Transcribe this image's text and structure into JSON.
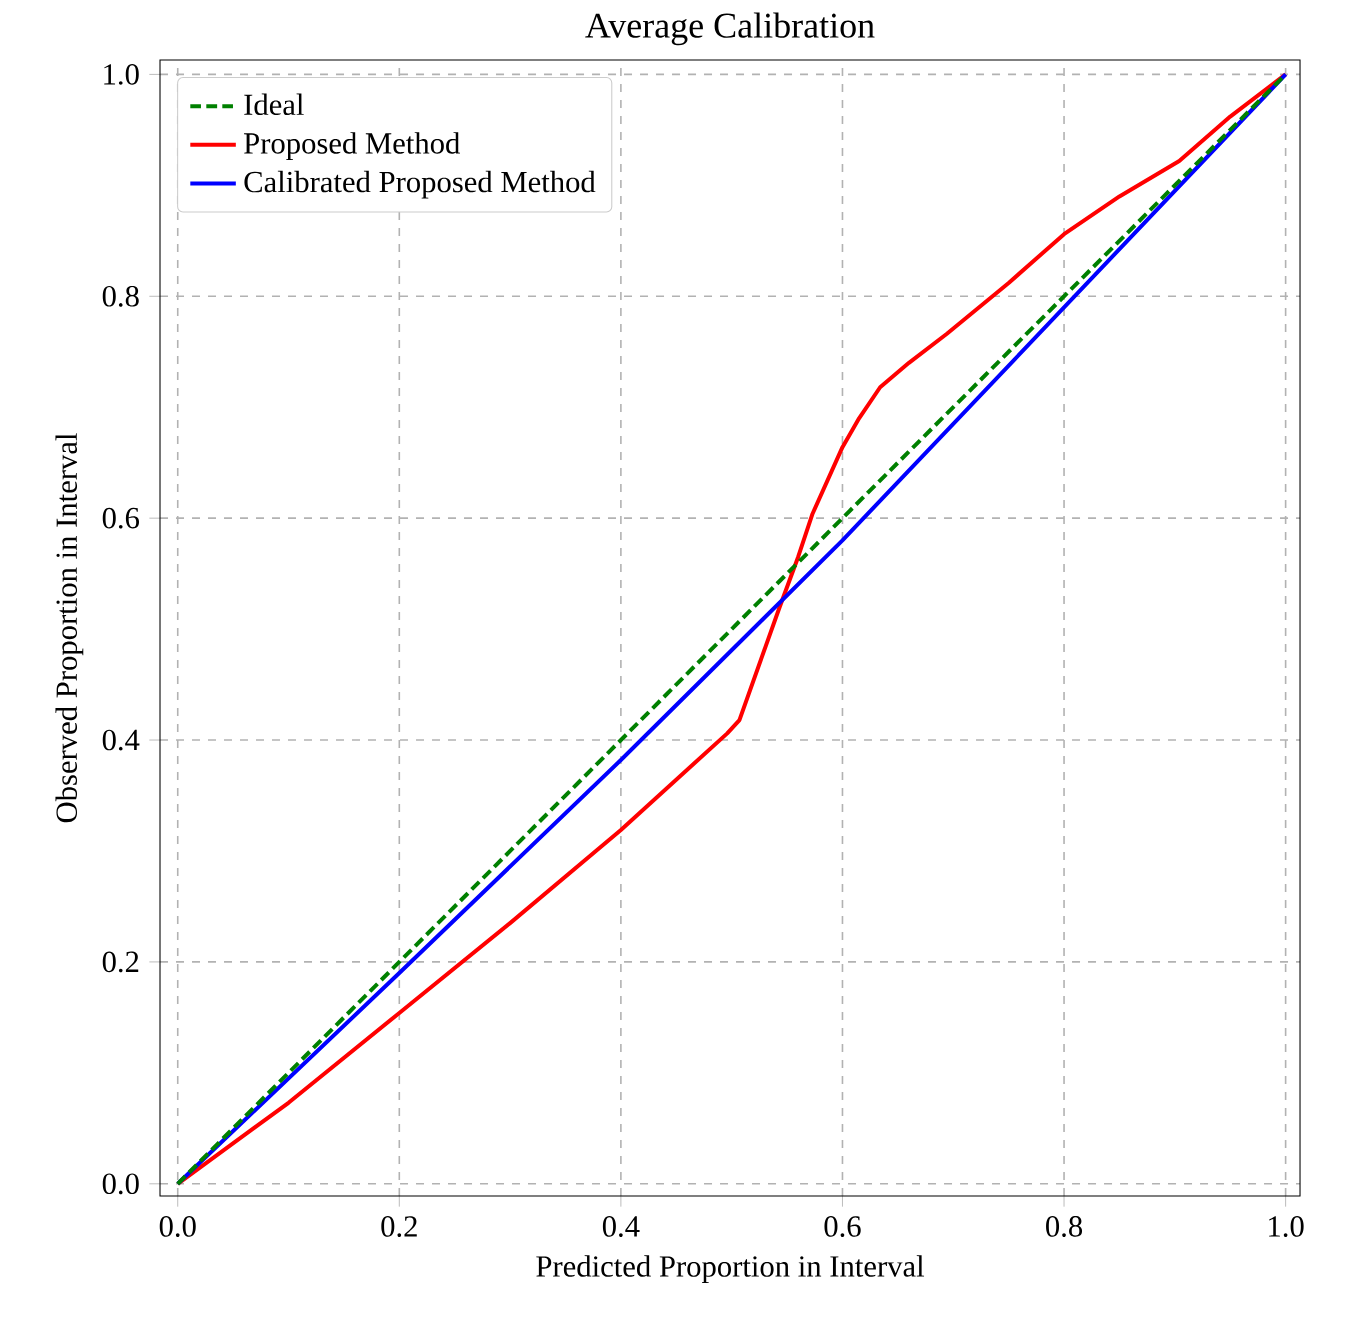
{
  "chart_data": {
    "type": "line",
    "title": "Average Calibration",
    "xlabel": "Predicted Proportion in Interval",
    "ylabel": "Observed Proportion in Interval",
    "xlim": [
      -0.016,
      1.013
    ],
    "ylim": [
      -0.011,
      1.013
    ],
    "xticks": [
      {
        "value": 0,
        "label": "0.0"
      },
      {
        "value": 0.2,
        "label": "0.2"
      },
      {
        "value": 0.4,
        "label": "0.4"
      },
      {
        "value": 0.6,
        "label": "0.6"
      },
      {
        "value": 0.8,
        "label": "0.8"
      },
      {
        "value": 1,
        "label": "1.0"
      }
    ],
    "yticks": [
      {
        "value": 0,
        "label": "0.0"
      },
      {
        "value": 0.2,
        "label": "0.2"
      },
      {
        "value": 0.4,
        "label": "0.4"
      },
      {
        "value": 0.6,
        "label": "0.6"
      },
      {
        "value": 0.8,
        "label": "0.8"
      },
      {
        "value": 1,
        "label": "1.0"
      }
    ],
    "grid": true,
    "legend": "top left",
    "series": [
      {
        "name": "Ideal",
        "color": "#008000",
        "line_style": "dashed",
        "x": [
          0,
          1
        ],
        "values": [
          0,
          1
        ]
      },
      {
        "name": "Proposed Method",
        "color": "#ff0000",
        "x": [
          0,
          0.1,
          0.2,
          0.3,
          0.4,
          0.496,
          0.507,
          0.543,
          0.56,
          0.573,
          0.6,
          0.615,
          0.634,
          0.66,
          0.694,
          0.75,
          0.8,
          0.85,
          0.904,
          0.95,
          1
        ],
        "values": [
          0,
          0.073,
          0.154,
          0.235,
          0.319,
          0.406,
          0.418,
          0.519,
          0.565,
          0.604,
          0.664,
          0.69,
          0.718,
          0.74,
          0.766,
          0.812,
          0.856,
          0.89,
          0.922,
          0.962,
          1
        ]
      },
      {
        "name": "Calibrated Proposed Method",
        "color": "#0000ff",
        "x": [
          0,
          0.2,
          0.4,
          0.6,
          0.8,
          0.9,
          1
        ],
        "values": [
          0,
          0.19,
          0.382,
          0.58,
          0.79,
          0.895,
          1
        ]
      }
    ]
  }
}
